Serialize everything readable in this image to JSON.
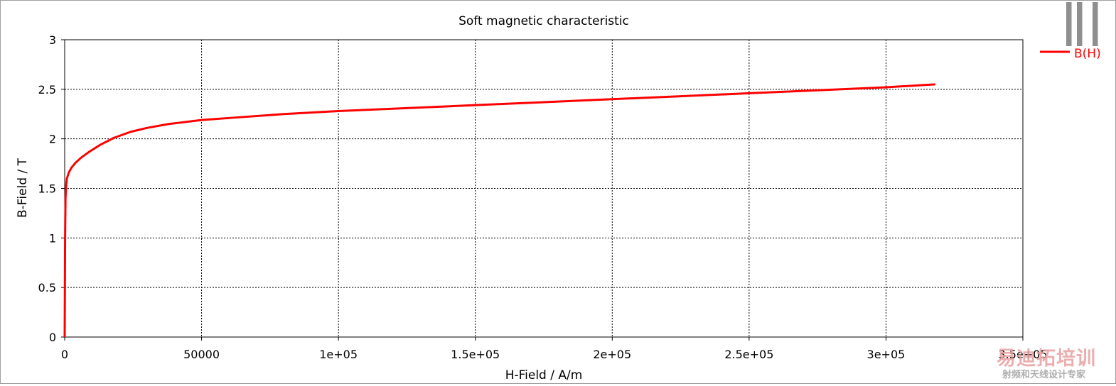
{
  "chart_data": {
    "type": "line",
    "title": "Soft magnetic characteristic",
    "xlabel": "H-Field / A/m",
    "ylabel": "B-Field / T",
    "xlim": [
      0,
      350000
    ],
    "ylim": [
      0,
      3
    ],
    "x_ticks": [
      0,
      50000,
      100000,
      150000,
      200000,
      250000,
      300000,
      350000
    ],
    "x_tick_labels": [
      "0",
      "50000",
      "1e+05",
      "1.5e+05",
      "2e+05",
      "2.5e+05",
      "3e+05",
      "3.5e+05"
    ],
    "y_ticks": [
      0,
      0.5,
      1,
      1.5,
      2,
      2.5,
      3
    ],
    "y_tick_labels": [
      "0",
      "0.5",
      "1",
      "1.5",
      "2",
      "2.5",
      "3"
    ],
    "grid": true,
    "legend_position": "top-right",
    "series": [
      {
        "name": "B(H)",
        "color": "#ff0000",
        "x": [
          0,
          150,
          300,
          500,
          800,
          1500,
          2500,
          4000,
          6000,
          9000,
          13000,
          18000,
          24000,
          30000,
          38000,
          50000,
          65000,
          80000,
          100000,
          125000,
          150000,
          175000,
          200000,
          225000,
          250000,
          275000,
          300000,
          318000
        ],
        "y": [
          0,
          1.0,
          1.4,
          1.52,
          1.6,
          1.66,
          1.71,
          1.76,
          1.81,
          1.87,
          1.94,
          2.01,
          2.07,
          2.11,
          2.15,
          2.19,
          2.22,
          2.25,
          2.28,
          2.31,
          2.34,
          2.37,
          2.4,
          2.43,
          2.46,
          2.49,
          2.52,
          2.55
        ]
      }
    ]
  },
  "watermark": {
    "logo_text": "易迪拓培训",
    "subtitle": "射频和天线设计专家",
    "qr_icon": "qr-code-icon"
  }
}
